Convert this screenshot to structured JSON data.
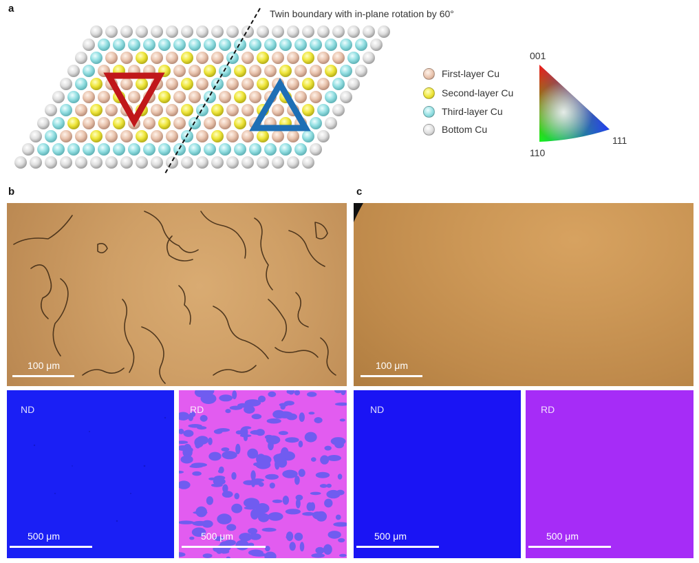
{
  "panel_a": {
    "letter": "a",
    "twin_boundary_label": "Twin boundary with in-plane rotation by 60°",
    "legend": [
      {
        "label": "First-layer Cu",
        "color": "#e8c2ad"
      },
      {
        "label": "Second-layer Cu",
        "color": "#ede73a"
      },
      {
        "label": "Third-layer Cu",
        "color": "#8fdde0"
      },
      {
        "label": "Bottom Cu",
        "color": "#dcdcdc"
      }
    ],
    "ipf": {
      "label_001": "001",
      "label_110": "110",
      "label_111": "111"
    },
    "triangle_colors": {
      "left": "#c0171a",
      "right": "#1e6fb5"
    }
  },
  "panel_b": {
    "letter": "b",
    "optical_scale": "100 μm",
    "nd_label": "ND",
    "rd_label": "RD",
    "nd_scale": "500 μm",
    "rd_scale": "500 μm"
  },
  "panel_c": {
    "letter": "c",
    "optical_scale": "100 μm",
    "nd_label": "ND",
    "rd_label": "RD",
    "nd_scale": "500 μm",
    "rd_scale": "500 μm"
  },
  "colors": {
    "nd_blue": "#1a1ff5",
    "rd_magenta": "#c84bf0",
    "rd_purple": "#9b2cf5",
    "optical_orange": "#c89a5e"
  }
}
